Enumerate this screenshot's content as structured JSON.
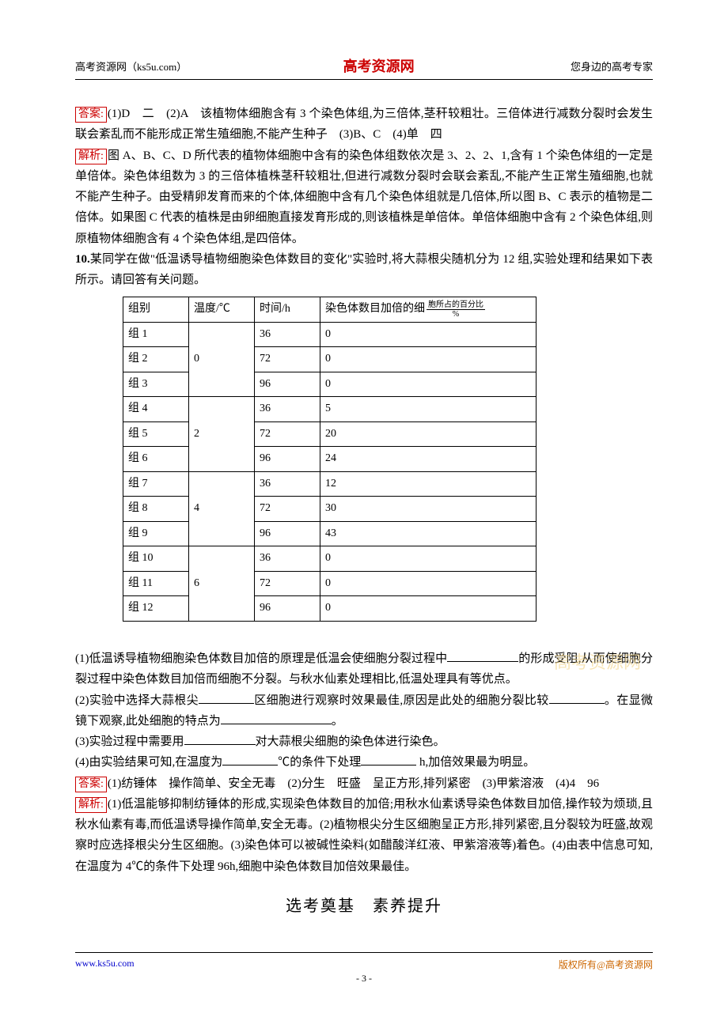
{
  "header": {
    "left": "高考资源网（ks5u.com）",
    "center": "高考资源网",
    "right": "您身边的高考专家"
  },
  "labels": {
    "answer": "答案:",
    "analysis": "解析:"
  },
  "answer9": "(1)D　二　(2)A　该植物体细胞含有 3 个染色体组,为三倍体,茎秆较粗壮。三倍体进行减数分裂时会发生联会紊乱而不能形成正常生殖细胞,不能产生种子　(3)B、C　(4)单　四",
  "analysis9": "图 A、B、C、D 所代表的植物体细胞中含有的染色体组数依次是 3、2、2、1,含有 1 个染色体组的一定是单倍体。染色体组数为 3 的三倍体植株茎秆较粗壮,但进行减数分裂时会联会紊乱,不能产生正常生殖细胞,也就不能产生种子。由受精卵发育而来的个体,体细胞中含有几个染色体组就是几倍体,所以图 B、C 表示的植物是二倍体。如果图 C 代表的植株是由卵细胞直接发育形成的,则该植株是单倍体。单倍体细胞中含有 2 个染色体组,则原植物体细胞含有 4 个染色体组,是四倍体。",
  "q10": {
    "number": "10.",
    "stem": "某同学在做\"低温诱导植物细胞染色体数目的变化\"实验时,将大蒜根尖随机分为 12 组,实验处理和结果如下表所示。请回答有关问题。"
  },
  "table": {
    "headers": {
      "group": "组别",
      "temp": "温度/℃",
      "time": "时间/h",
      "pct_prefix": "染色体数目加倍的细",
      "pct_frac_num": "胞所占的百分比",
      "pct_frac_den": "%"
    },
    "blocks": [
      {
        "temp": "0",
        "rows": [
          {
            "g": "组 1",
            "t": "36",
            "p": "0"
          },
          {
            "g": "组 2",
            "t": "72",
            "p": "0"
          },
          {
            "g": "组 3",
            "t": "96",
            "p": "0"
          }
        ]
      },
      {
        "temp": "2",
        "rows": [
          {
            "g": "组 4",
            "t": "36",
            "p": "5"
          },
          {
            "g": "组 5",
            "t": "72",
            "p": "20"
          },
          {
            "g": "组 6",
            "t": "96",
            "p": "24"
          }
        ]
      },
      {
        "temp": "4",
        "rows": [
          {
            "g": "组 7",
            "t": "36",
            "p": "12"
          },
          {
            "g": "组 8",
            "t": "72",
            "p": "30"
          },
          {
            "g": "组 9",
            "t": "96",
            "p": "43"
          }
        ]
      },
      {
        "temp": "6",
        "rows": [
          {
            "g": "组 10",
            "t": "36",
            "p": "0"
          },
          {
            "g": "组 11",
            "t": "72",
            "p": "0"
          },
          {
            "g": "组 12",
            "t": "96",
            "p": "0"
          }
        ]
      }
    ]
  },
  "subq": {
    "q1a": "(1)低温诱导植物细胞染色体数目加倍的原理是低温会使细胞分裂过程中",
    "q1b": "的形成受阻,从而使细胞分裂过程中染色体数目加倍而细胞不分裂。与秋水仙素处理相比,低温处理具有等优点。",
    "q2a": "(2)实验中选择大蒜根尖",
    "q2b": "区细胞进行观察时效果最佳,原因是此处的细胞分裂比较",
    "q2c": "。在显微镜下观察,此处细胞的特点为",
    "q2d": "。",
    "q3a": "(3)实验过程中需要用",
    "q3b": "对大蒜根尖细胞的染色体进行染色。",
    "q4a": "(4)由实验结果可知,在温度为",
    "q4b": "℃的条件下处理",
    "q4c": " h,加倍效果最为明显。"
  },
  "answer10": "(1)纺锤体　操作简单、安全无毒　(2)分生　旺盛　呈正方形,排列紧密　(3)甲紫溶液　(4)4　96",
  "analysis10": "(1)低温能够抑制纺锤体的形成,实现染色体数目的加倍;用秋水仙素诱导染色体数目加倍,操作较为烦琐,且秋水仙素有毒,而低温诱导操作简单,安全无毒。(2)植物根尖分生区细胞呈正方形,排列紧密,且分裂较为旺盛,故观察时应选择根尖分生区细胞。(3)染色体可以被碱性染料(如醋酸洋红液、甲紫溶液等)着色。(4)由表中信息可知,在温度为 4℃的条件下处理 96h,细胞中染色体数目加倍效果最佳。",
  "section_title": "选考奠基　素养提升",
  "watermark": "高考资源网",
  "footer": {
    "url": "www.ks5u.com",
    "right_prefix": "版权所有",
    "right_suffix": "@高考资源网",
    "page": "- 3 -"
  }
}
